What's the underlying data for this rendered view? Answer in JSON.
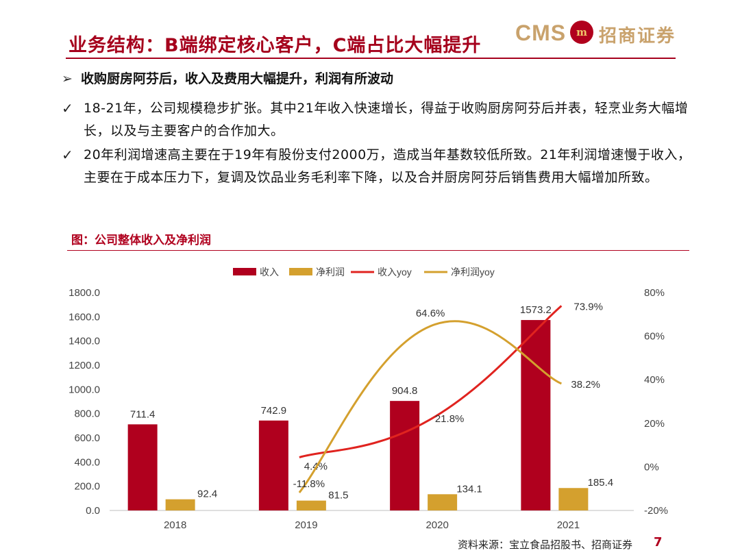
{
  "header": {
    "title": "业务结构：B端绑定核心客户，C端占比大幅提升",
    "logo_text": "CMS",
    "logo_mark": "m",
    "logo_name": "招商证券"
  },
  "bullets": {
    "heading_icon": "arrow-right-icon",
    "heading": "收购厨房阿芬后，收入及费用大幅提升，利润有所波动",
    "items": [
      {
        "icon": "check-icon",
        "text": "18-21年，公司规模稳步扩张。其中21年收入快速增长，得益于收购厨房阿芬后并表，轻烹业务大幅增长，以及与主要客户的合作加大。"
      },
      {
        "icon": "check-icon",
        "text": "20年利润增速高主要在于19年有股份支付2000万，造成当年基数较低所致。21年利润增速慢于收入，主要在于成本压力下，复调及饮品业务毛利率下降，以及合并厨房阿芬后销售费用大幅增加所致。"
      }
    ]
  },
  "figure": {
    "title": "图：公司整体收入及净利润",
    "source": "资料来源：宝立食品招股书、招商证券",
    "page": "7"
  },
  "chart_data": {
    "type": "bar",
    "title": "",
    "categories": [
      "2018",
      "2019",
      "2020",
      "2021"
    ],
    "series": [
      {
        "name": "收入",
        "kind": "bar",
        "axis": "left",
        "color": "#b0001e",
        "values": [
          711.4,
          742.9,
          904.8,
          1573.2
        ],
        "labels": [
          "711.4",
          "742.9",
          "904.8",
          "1573.2"
        ]
      },
      {
        "name": "净利润",
        "kind": "bar",
        "axis": "left",
        "color": "#d4a02e",
        "values": [
          92.4,
          81.5,
          134.1,
          185.4
        ],
        "labels": [
          "92.4",
          "81.5",
          "134.1",
          "185.4"
        ]
      },
      {
        "name": "收入yoy",
        "kind": "line",
        "axis": "right",
        "color": "#e0231f",
        "values": [
          null,
          4.4,
          21.8,
          73.9
        ],
        "labels": [
          "",
          "4.4%",
          "21.8%",
          "73.9%"
        ]
      },
      {
        "name": "净利润yoy",
        "kind": "line",
        "axis": "right",
        "color": "#d4a02e",
        "values": [
          null,
          -11.8,
          64.6,
          38.2
        ],
        "labels": [
          "",
          "-11.8%",
          "64.6%",
          "38.2%"
        ]
      }
    ],
    "y_left": {
      "min": 0,
      "max": 1800,
      "ticks": [
        "0.0",
        "200.0",
        "400.0",
        "600.0",
        "800.0",
        "1000.0",
        "1200.0",
        "1400.0",
        "1600.0",
        "1800.0"
      ]
    },
    "y_right": {
      "min": -20,
      "max": 80,
      "ticks": [
        "-20%",
        "0%",
        "20%",
        "40%",
        "60%",
        "80%"
      ]
    },
    "legend_position": "top",
    "grid": false
  }
}
